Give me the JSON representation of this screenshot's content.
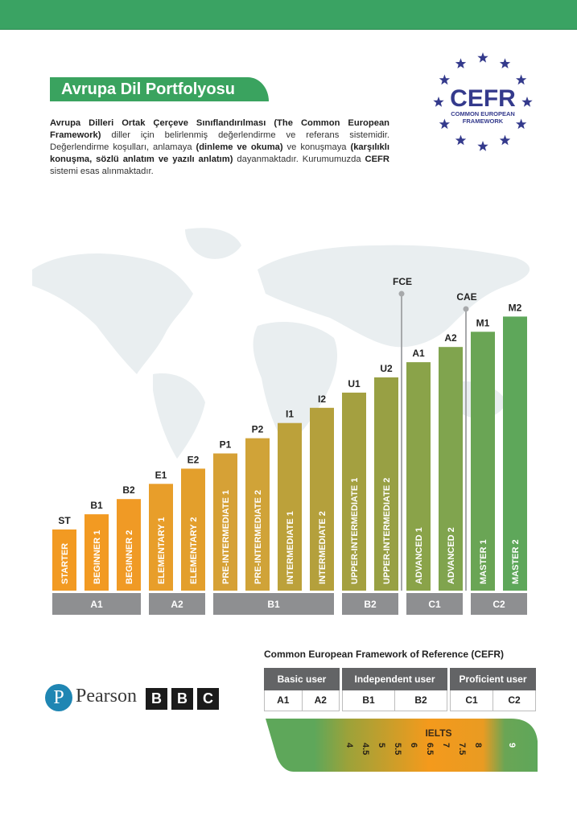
{
  "header": {
    "bar_color": "#3aa363"
  },
  "title": "Avrupa Dil Portfolyosu",
  "intro": {
    "p1_bold": "Avrupa Dilleri Ortak Çerçeve Sınıflandırılması (The Common European Framework)",
    "p2": " diller için belirlenmiş değerlendirme ve referans sistemidir. Değerlendirme koşulları, anlamaya ",
    "p3_bold": "(dinleme ve okuma)",
    "p4": " ve konuşmaya ",
    "p5_bold": "(karşılıklı konuşma, sözlü anlatım ve yazılı anlatım)",
    "p6": " dayanmaktadır. Kurumumuzda ",
    "p7_bold": "CEFR",
    "p8": " sistemi esas alınmaktadır."
  },
  "cefr_logo": {
    "big": "CEFR",
    "line1": "COMMON EUROPEAN",
    "line2": "FRAMEWORK",
    "color": "#343a8c"
  },
  "chart_data": {
    "type": "bar",
    "title": "",
    "xlabel": "",
    "ylabel": "",
    "ylim": [
      0,
      15
    ],
    "grid": false,
    "categories": [
      "ST",
      "B1",
      "B2",
      "E1",
      "E2",
      "P1",
      "P2",
      "I1",
      "I2",
      "U1",
      "U2",
      "A1",
      "A2",
      "M1",
      "M2"
    ],
    "bar_labels": [
      "STARTER",
      "BEGINNER 1",
      "BEGINNER 2",
      "ELEMENTARY 1",
      "ELEMENTARY 2",
      "PRE-INTERMEDIATE 1",
      "PRE-INTERMEDIATE 2",
      "INTERMEDIATE 1",
      "INTERMEDIATE 2",
      "UPPER-INTERMEDIATE 1",
      "UPPER-INTERMEDIATE 2",
      "ADVANCED 1",
      "ADVANCED 2",
      "MASTER 1",
      "MASTER 2"
    ],
    "values": [
      4,
      5,
      6,
      7,
      8,
      9,
      10,
      11,
      12,
      13,
      14,
      15,
      16,
      17,
      18
    ],
    "colors": [
      "#f29a22",
      "#f29a22",
      "#f09a25",
      "#e89e2a",
      "#e39f2c",
      "#d6a136",
      "#d0a338",
      "#bca13a",
      "#b4a03c",
      "#a4a040",
      "#98a044",
      "#8aa349",
      "#80a44e",
      "#6aa555",
      "#5ea75a"
    ],
    "groups": [
      {
        "label": "A1",
        "start": 0,
        "end": 2
      },
      {
        "label": "A2",
        "start": 3,
        "end": 4
      },
      {
        "label": "B1",
        "start": 5,
        "end": 8
      },
      {
        "label": "B2",
        "start": 9,
        "end": 10
      },
      {
        "label": "C1",
        "start": 11,
        "end": 12
      },
      {
        "label": "C2",
        "start": 13,
        "end": 14
      }
    ],
    "markers": [
      {
        "label": "FCE",
        "between": [
          10,
          11
        ],
        "level": 19.5
      },
      {
        "label": "CAE",
        "between": [
          12,
          13
        ],
        "level": 18.5
      }
    ]
  },
  "cefr_table": {
    "title": "Common European Framework of Reference (CEFR)",
    "groups": [
      {
        "header": "Basic user",
        "levels": [
          "A1",
          "A2"
        ]
      },
      {
        "header": "Independent user",
        "levels": [
          "B1",
          "B2"
        ]
      },
      {
        "header": "Proficient user",
        "levels": [
          "C1",
          "C2"
        ]
      }
    ]
  },
  "ielts": {
    "label": "IELTS",
    "scores": [
      "4",
      "4.5",
      "5",
      "5.5",
      "6",
      "6.5",
      "7",
      "7.5",
      "8",
      "9"
    ]
  },
  "logos": {
    "pearson_mark": "P",
    "pearson": "Pearson",
    "bbc": [
      "B",
      "B",
      "C"
    ]
  }
}
